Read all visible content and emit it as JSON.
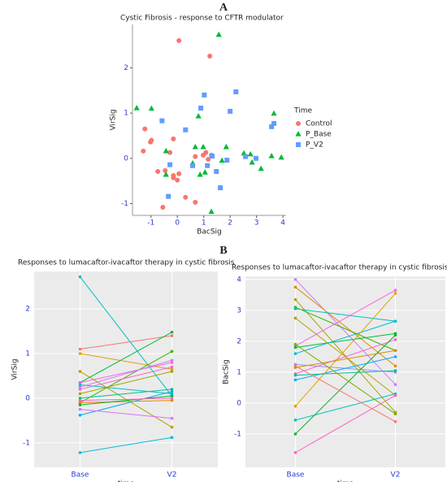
{
  "chart_data": [
    {
      "type": "scatter",
      "panel_label": "A",
      "title": "Cystic Fibrosis - response to CFTR modulator",
      "x_label": "BacSig",
      "y_label": "VirSig",
      "legend_title": "Time",
      "xlim": [
        -1.7,
        4.12
      ],
      "ylim": [
        -1.26,
        2.96
      ],
      "xticks": [
        -1,
        0,
        1,
        2,
        3,
        4
      ],
      "yticks": [
        -1,
        0,
        1,
        2
      ],
      "grid": false,
      "series": [
        {
          "name": "Control",
          "color": "#f8766d",
          "marker": "circle",
          "x": [
            0.06,
            1.23,
            -1.23,
            -1.29,
            -1.02,
            -0.98,
            -0.15,
            -0.28,
            0.68,
            0.98,
            1.08,
            1.29,
            1.17,
            -0.74,
            -0.46,
            -0.15,
            0,
            0.06,
            -0.15,
            0.31,
            0.68,
            -0.55
          ],
          "y": [
            2.6,
            2.26,
            0.65,
            0.16,
            0.36,
            0.4,
            0.43,
            0.13,
            0.04,
            0.07,
            0.13,
            0.07,
            -0.02,
            -0.29,
            -0.27,
            -0.38,
            -0.48,
            -0.34,
            -0.43,
            -0.86,
            -0.97,
            -1.08
          ]
        },
        {
          "name": "P_Base",
          "color": "#00ba38",
          "marker": "triangle",
          "x": [
            1.57,
            -1.54,
            -0.98,
            0.8,
            3.66,
            -0.43,
            0.68,
            0.98,
            1.85,
            2.52,
            2.77,
            2.83,
            3.17,
            3.94,
            3.57,
            0.58,
            1.05,
            0.86,
            -0.43,
            1.29,
            1.69
          ],
          "y": [
            2.73,
            1.11,
            1.1,
            0.93,
            0.99,
            0.16,
            0.25,
            0.25,
            0.25,
            0.11,
            0.09,
            -0.09,
            -0.23,
            0.02,
            0.05,
            -0.11,
            -0.31,
            -0.36,
            -0.36,
            -1.18,
            -0.05
          ]
        },
        {
          "name": "P_V2",
          "color": "#619cff",
          "marker": "square",
          "x": [
            1.02,
            2.22,
            0.89,
            2.0,
            -0.58,
            0.31,
            3.57,
            3.66,
            -0.28,
            0.58,
            1.32,
            2.58,
            2.98,
            1.88,
            1.48,
            1.63,
            -0.34,
            1.14
          ],
          "y": [
            1.4,
            1.47,
            1.11,
            1.04,
            0.83,
            0.63,
            0.7,
            0.77,
            -0.14,
            -0.16,
            0.05,
            0.04,
            0,
            -0.04,
            -0.29,
            -0.65,
            -0.84,
            -0.16
          ]
        }
      ]
    },
    {
      "type": "slope",
      "panel_label": "B",
      "title": "Responses to lumacaftor-ivacaftor therapy in cystic fibrosis",
      "x_label": "time",
      "y_label": "VirSig",
      "categories": [
        "Base",
        "V2"
      ],
      "ylim": [
        -1.55,
        2.84
      ],
      "yticks": [
        -1,
        0,
        1,
        2
      ],
      "grid": true,
      "series": [
        {
          "color": "#00bfc4",
          "values": [
            2.72,
            0.05
          ]
        },
        {
          "color": "#f8766d",
          "values": [
            1.1,
            1.4
          ]
        },
        {
          "color": "#e69f00",
          "values": [
            1.0,
            0.65
          ]
        },
        {
          "color": "#00ba38",
          "values": [
            0.35,
            1.48
          ]
        },
        {
          "color": "#39b600",
          "values": [
            -0.1,
            1.05
          ]
        },
        {
          "color": "#b79f00",
          "values": [
            0.6,
            -0.65
          ]
        },
        {
          "color": "#f564e3",
          "values": [
            0.35,
            0.8
          ]
        },
        {
          "color": "#fd61d1",
          "values": [
            0.2,
            0.7
          ]
        },
        {
          "color": "#c77cff",
          "values": [
            0.25,
            0.85
          ]
        },
        {
          "color": "#00a9ff",
          "values": [
            -0.38,
            0.15
          ]
        },
        {
          "color": "#00bcd8",
          "values": [
            -1.22,
            -0.88
          ]
        },
        {
          "color": "#a3a500",
          "values": [
            0.1,
            0.6
          ]
        },
        {
          "color": "#dc71fa",
          "values": [
            -0.25,
            -0.45
          ]
        },
        {
          "color": "#00c08b",
          "values": [
            0.0,
            0.2
          ]
        },
        {
          "color": "#e58700",
          "values": [
            -0.1,
            -0.05
          ]
        },
        {
          "color": "#00b81f",
          "values": [
            -0.15,
            0.05
          ]
        },
        {
          "color": "#ff61c3",
          "values": [
            -0.05,
            0.0
          ]
        },
        {
          "color": "#00bfc4",
          "values": [
            0.3,
            0.1
          ]
        }
      ]
    },
    {
      "type": "slope",
      "title": "Responses to lumacaftor-ivacaftor therapy in cystic fibrosis",
      "x_label": "time",
      "y_label": "BacSig",
      "categories": [
        "Base",
        "V2"
      ],
      "ylim": [
        -2.08,
        4.1
      ],
      "yticks": [
        -1,
        0,
        1,
        2,
        3,
        4
      ],
      "grid": true,
      "series": [
        {
          "color": "#c77cff",
          "values": [
            4.0,
            0.6
          ]
        },
        {
          "color": "#e58700",
          "values": [
            3.75,
            1.2
          ]
        },
        {
          "color": "#a3a500",
          "values": [
            3.35,
            -0.3
          ]
        },
        {
          "color": "#39b600",
          "values": [
            3.1,
            1.7
          ]
        },
        {
          "color": "#00bfc4",
          "values": [
            3.05,
            2.65
          ]
        },
        {
          "color": "#b79f00",
          "values": [
            2.75,
            0.25
          ]
        },
        {
          "color": "#f564e3",
          "values": [
            1.85,
            3.65
          ]
        },
        {
          "color": "#00ba38",
          "values": [
            1.8,
            2.25
          ]
        },
        {
          "color": "#00bcd8",
          "values": [
            1.6,
            2.65
          ]
        },
        {
          "color": "#9590ff",
          "values": [
            1.25,
            1.0
          ]
        },
        {
          "color": "#fd61d1",
          "values": [
            0.95,
            2.05
          ]
        },
        {
          "color": "#00c08b",
          "values": [
            0.9,
            1.05
          ]
        },
        {
          "color": "#00a9ff",
          "values": [
            0.75,
            1.5
          ]
        },
        {
          "color": "#e69f00",
          "values": [
            -0.1,
            3.55
          ]
        },
        {
          "color": "#00bfc4",
          "values": [
            -0.55,
            0.3
          ]
        },
        {
          "color": "#00b81f",
          "values": [
            -1.0,
            2.2
          ]
        },
        {
          "color": "#ff61c3",
          "values": [
            -1.6,
            0.25
          ]
        },
        {
          "color": "#f8766d",
          "values": [
            1.2,
            -0.6
          ]
        },
        {
          "color": "#d89000",
          "values": [
            1.15,
            1.7
          ]
        },
        {
          "color": "#7cae00",
          "values": [
            1.9,
            -0.35
          ]
        }
      ]
    }
  ]
}
